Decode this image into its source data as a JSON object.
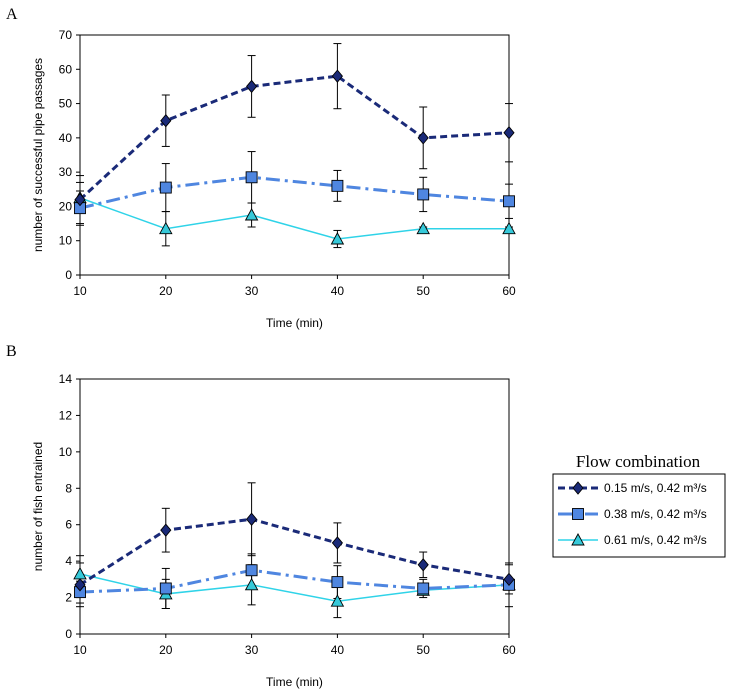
{
  "panel_labels": [
    "A",
    "B"
  ],
  "legend": {
    "title": "Flow combination",
    "entries": [
      "0.15 m/s, 0.42 m³/s",
      "0.38 m/s, 0.42 m³/s",
      "0.61 m/s, 0.42 m³/s"
    ]
  },
  "colors": {
    "series": [
      "#1a2a78",
      "#4f86e0",
      "#2fd3e8"
    ],
    "marker_fill": [
      "#1a2a78",
      "#4f86e0",
      "#36c9d9"
    ],
    "axis": "#000000"
  },
  "chart_data": [
    {
      "type": "line",
      "panel": "A",
      "title": "",
      "xlabel": "Time (min)",
      "ylabel": "number of successful pipe passages",
      "x": [
        10,
        20,
        30,
        40,
        50,
        60
      ],
      "xlim": [
        10,
        60
      ],
      "ylim": [
        0,
        70
      ],
      "xticks": [
        "10",
        "20",
        "30",
        "40",
        "50",
        "60"
      ],
      "yticks": [
        "0",
        "10",
        "20",
        "30",
        "40",
        "50",
        "60",
        "70"
      ],
      "grid": false,
      "series": [
        {
          "name": "0.15 m/s, 0.42 m³/s",
          "values": [
            22,
            45,
            55,
            58,
            40,
            41.5
          ],
          "err": [
            7,
            7.5,
            9,
            9.5,
            9,
            8.5
          ]
        },
        {
          "name": "0.38 m/s, 0.42 m³/s",
          "values": [
            19.5,
            25.5,
            28.5,
            26,
            23.5,
            21.5
          ],
          "err": [
            5,
            7,
            7.5,
            4.5,
            5,
            5
          ]
        },
        {
          "name": "0.61 m/s, 0.42 m³/s",
          "values": [
            22.5,
            13.5,
            17.5,
            10.5,
            13.5,
            13.5
          ],
          "err": [
            4.5,
            5,
            3.5,
            2.5,
            0.5,
            0.5
          ]
        }
      ]
    },
    {
      "type": "line",
      "panel": "B",
      "title": "",
      "xlabel": "Time (min)",
      "ylabel": "number of fish entrained",
      "x": [
        10,
        20,
        30,
        40,
        50,
        60
      ],
      "xlim": [
        10,
        60
      ],
      "ylim": [
        0,
        14
      ],
      "xticks": [
        "10",
        "20",
        "30",
        "40",
        "50",
        "60"
      ],
      "yticks": [
        "0",
        "2",
        "4",
        "6",
        "8",
        "10",
        "12",
        "14"
      ],
      "grid": false,
      "series": [
        {
          "name": "0.15 m/s, 0.42 m³/s",
          "values": [
            2.7,
            5.7,
            6.3,
            5.0,
            3.8,
            3.0
          ],
          "err": [
            1.2,
            1.2,
            2.0,
            1.1,
            0.7,
            0.8
          ]
        },
        {
          "name": "0.38 m/s, 0.42 m³/s",
          "values": [
            2.3,
            2.5,
            3.5,
            2.85,
            2.5,
            2.7
          ],
          "err": [
            0.6,
            1.1,
            0.9,
            0.9,
            0.5,
            1.2
          ]
        },
        {
          "name": "0.61 m/s, 0.42 m³/s",
          "values": [
            3.3,
            2.2,
            2.7,
            1.8,
            2.4,
            2.7
          ],
          "err": [
            1.0,
            0.8,
            1.1,
            0.9,
            0.2,
            0.2
          ]
        }
      ]
    }
  ]
}
